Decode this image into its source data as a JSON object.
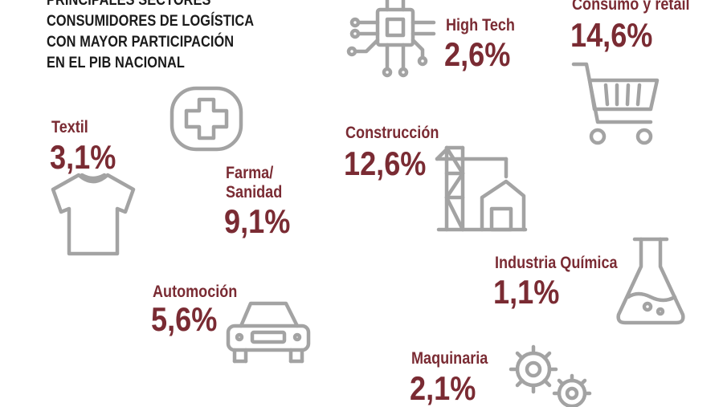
{
  "title": {
    "line1": "PRINCIPALES SECTORES",
    "line2": "CONSUMIDORES DE LOGÍSTICA",
    "line3": "CON MAYOR PARTICIPACIÓN",
    "line4": "EN EL PIB NACIONAL"
  },
  "sectors": {
    "high_tech": {
      "label": "High Tech",
      "value": "2,6%",
      "icon": "circuit-chip-icon"
    },
    "consumo": {
      "label": "Consumo y retail",
      "value": "14,6%",
      "icon": "shopping-cart-icon"
    },
    "textil": {
      "label": "Textil",
      "value": "3,1%",
      "icon": "tshirt-icon"
    },
    "farma": {
      "label1": "Farma/",
      "label2": "Sanidad",
      "value": "9,1%",
      "icon": "medical-cross-icon"
    },
    "construccion": {
      "label": "Construcción",
      "value": "12,6%",
      "icon": "crane-building-icon"
    },
    "quimica": {
      "label": "Industria Química",
      "value": "1,1%",
      "icon": "flask-icon"
    },
    "automocion": {
      "label": "Automoción",
      "value": "5,6%",
      "icon": "car-icon"
    },
    "maquinaria": {
      "label": "Maquinaria",
      "value": "2,1%",
      "icon": "gears-icon"
    }
  },
  "colors": {
    "accent": "#7a2b33",
    "icon": "#a3a3a3",
    "text": "#1a1a1a"
  }
}
